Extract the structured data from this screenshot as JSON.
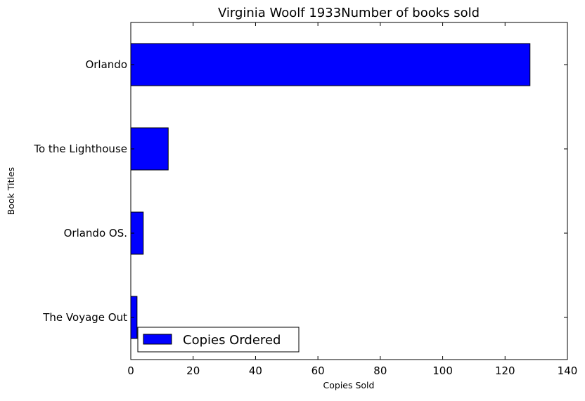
{
  "chart_data": {
    "type": "bar",
    "orientation": "horizontal",
    "title": "Virginia Woolf 1933Number of books sold",
    "xlabel": "Copies Sold",
    "ylabel": "Book Titles",
    "categories": [
      "The Voyage Out",
      "Orlando OS.",
      "To the Lighthouse",
      "Orlando"
    ],
    "series": [
      {
        "name": "Copies Ordered",
        "values": [
          2,
          4,
          12,
          128
        ],
        "color": "#0000ff"
      }
    ],
    "xlim": [
      0,
      140
    ],
    "xticks": [
      0,
      20,
      40,
      60,
      80,
      100,
      120,
      140
    ],
    "grid": false,
    "legend_position": "lower-left"
  }
}
